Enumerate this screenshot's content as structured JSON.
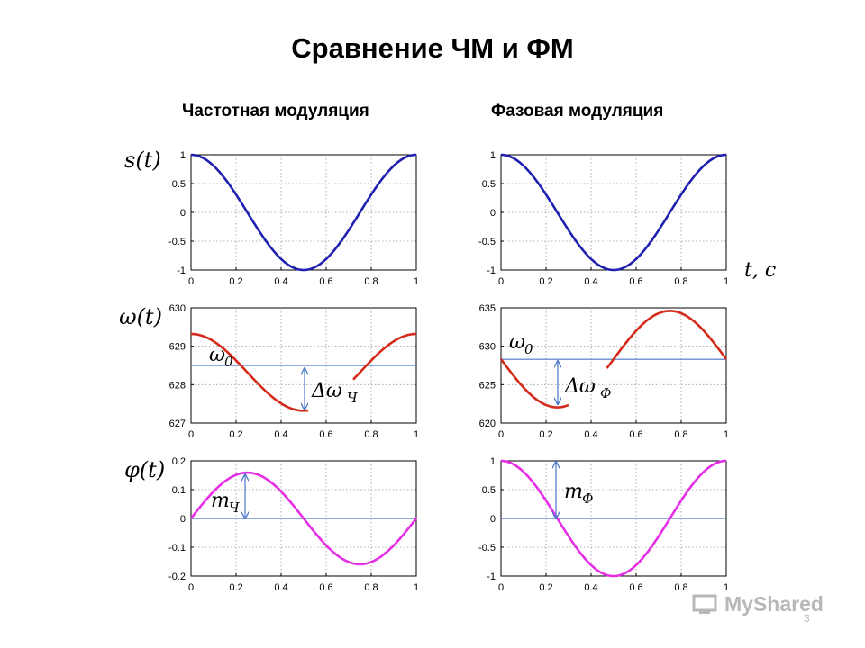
{
  "title": "Сравнение ЧМ и ФМ",
  "columns": {
    "left": "Частотная модуляция",
    "right": "Фазовая модуляция"
  },
  "colors": {
    "signal": "#1f1fb0",
    "frequency": "#d42a1a",
    "phase": "#e62ee6",
    "reference": "#4a78c8"
  },
  "time_axis_label": "t, c",
  "row_labels": [
    "s(t)",
    "ω(t)",
    "φ(t)"
  ],
  "annotations": {
    "omega0": "ω",
    "omega0_sub": "0",
    "delta_fm": "Δω",
    "delta_fm_sub": "Ч",
    "delta_pm": "Δω",
    "delta_pm_sub": "Ф",
    "m_fm": "m",
    "m_fm_sub": "Ч",
    "m_pm": "m",
    "m_pm_sub": "Ф"
  },
  "watermark": "MyShared",
  "page_number": "3",
  "chart_data": [
    {
      "id": "fm-s",
      "type": "line",
      "xlim": [
        0,
        1
      ],
      "ylim": [
        -1,
        1
      ],
      "grid": true,
      "xticks": [
        "0",
        "0.2",
        "0.4",
        "0.6",
        "0.8",
        "1"
      ],
      "yticks": [
        "1",
        "0.5",
        "0",
        "-0.5",
        "-1"
      ],
      "series": [
        {
          "func": "cos2pi",
          "amp": 1,
          "offset": 0,
          "color": "#1f1fb0"
        }
      ]
    },
    {
      "id": "pm-s",
      "type": "line",
      "xlim": [
        0,
        1
      ],
      "ylim": [
        -1,
        1
      ],
      "grid": true,
      "xticks": [
        "0",
        "0.2",
        "0.4",
        "0.6",
        "0.8",
        "1"
      ],
      "yticks": [
        "1",
        "0.5",
        "0",
        "-0.5",
        "-1"
      ],
      "series": [
        {
          "func": "cos2pi",
          "amp": 1,
          "offset": 0,
          "color": "#1f1fb0"
        }
      ]
    },
    {
      "id": "fm-w",
      "type": "line",
      "xlim": [
        0,
        1
      ],
      "ylim": [
        627,
        630
      ],
      "grid": true,
      "xticks": [
        "0",
        "0.2",
        "0.4",
        "0.6",
        "0.8",
        "1"
      ],
      "yticks": [
        "630",
        "629",
        "628",
        "627"
      ],
      "reference": 628.5,
      "series": [
        {
          "func": "cos2pi",
          "amp": 1,
          "offset": 628.32,
          "color": "#d42a1a",
          "gap": [
            0.52,
            0.72
          ]
        }
      ]
    },
    {
      "id": "pm-w",
      "type": "line",
      "xlim": [
        0,
        1
      ],
      "ylim": [
        620,
        635
      ],
      "grid": true,
      "xticks": [
        "0",
        "0.2",
        "0.4",
        "0.6",
        "0.8",
        "1"
      ],
      "yticks": [
        "635",
        "630",
        "625",
        "620"
      ],
      "reference": 628.3,
      "series": [
        {
          "func": "negsin2pi",
          "amp": 6.28,
          "offset": 628.32,
          "color": "#d42a1a",
          "gap": [
            0.3,
            0.47
          ]
        }
      ]
    },
    {
      "id": "fm-p",
      "type": "line",
      "xlim": [
        0,
        1
      ],
      "ylim": [
        -0.2,
        0.2
      ],
      "grid": true,
      "xticks": [
        "0",
        "0.2",
        "0.4",
        "0.6",
        "0.8",
        "1"
      ],
      "yticks": [
        "0.2",
        "0.1",
        "0",
        "-0.1",
        "-0.2"
      ],
      "reference": 0,
      "series": [
        {
          "func": "sin2pi",
          "amp": 0.159,
          "offset": 0,
          "color": "#e62ee6"
        }
      ]
    },
    {
      "id": "pm-p",
      "type": "line",
      "xlim": [
        0,
        1
      ],
      "ylim": [
        -1,
        1
      ],
      "grid": true,
      "xticks": [
        "0",
        "0.2",
        "0.4",
        "0.6",
        "0.8",
        "1"
      ],
      "yticks": [
        "1",
        "0.5",
        "0",
        "-0.5",
        "-1"
      ],
      "reference": 0,
      "series": [
        {
          "func": "cos2pi",
          "amp": 1,
          "offset": 0,
          "color": "#e62ee6"
        }
      ]
    }
  ]
}
